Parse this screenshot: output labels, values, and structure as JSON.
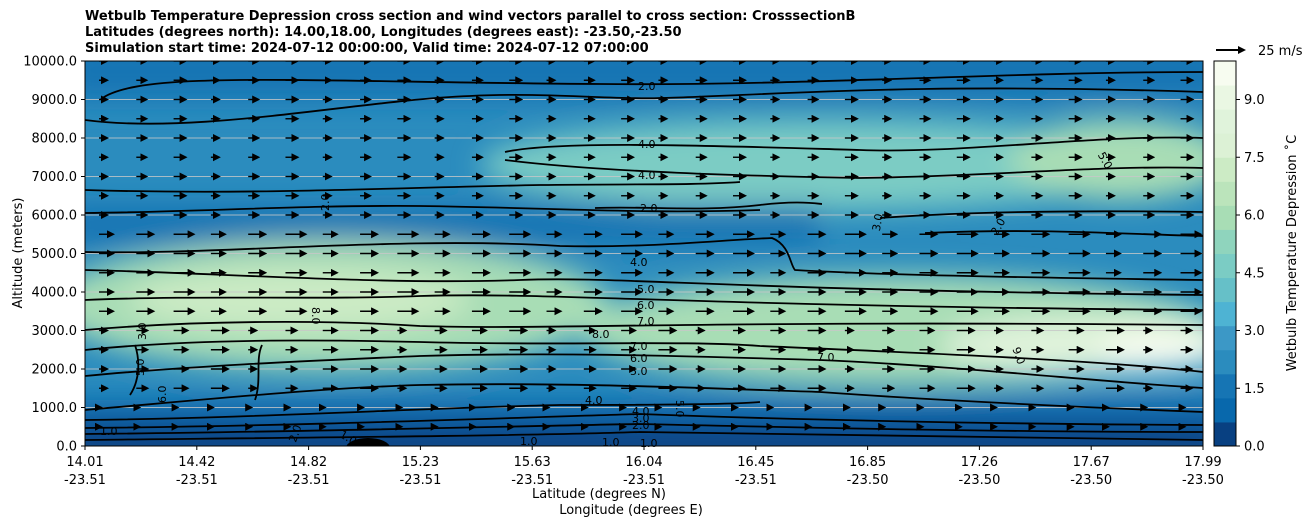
{
  "chart_data": {
    "type": "contour",
    "title_lines": [
      "Wetbulb Temperature Depression cross section and wind vectors parallel to cross section: CrosssectionB",
      "Latitudes (degrees north): 14.00,18.00, Longitudes (degrees east): -23.50,-23.50",
      "Simulation start time: 2024-07-12 00:00:00, Valid time: 2024-07-12 07:00:00"
    ],
    "ylabel": "Altitude (meters)",
    "xlabel_lat": "Latitude (degrees N)",
    "xlabel_lon": "Longitude (degrees E)",
    "ylim": [
      0,
      10000
    ],
    "y_ticks": [
      "0.0",
      "1000.0",
      "2000.0",
      "3000.0",
      "4000.0",
      "5000.0",
      "6000.0",
      "7000.0",
      "8000.0",
      "9000.0",
      "10000.0"
    ],
    "x_ticks": [
      {
        "lat": "14.01",
        "lon": "-23.51"
      },
      {
        "lat": "14.42",
        "lon": "-23.51"
      },
      {
        "lat": "14.82",
        "lon": "-23.51"
      },
      {
        "lat": "15.23",
        "lon": "-23.51"
      },
      {
        "lat": "15.63",
        "lon": "-23.51"
      },
      {
        "lat": "16.04",
        "lon": "-23.51"
      },
      {
        "lat": "16.45",
        "lon": "-23.51"
      },
      {
        "lat": "16.85",
        "lon": "-23.50"
      },
      {
        "lat": "17.26",
        "lon": "-23.50"
      },
      {
        "lat": "17.67",
        "lon": "-23.50"
      },
      {
        "lat": "17.99",
        "lon": "-23.50"
      }
    ],
    "colorbar": {
      "label": "Wetbulb Temperature Depression ˚C",
      "ticks": [
        "0.0",
        "1.5",
        "3.0",
        "4.5",
        "6.0",
        "7.5",
        "9.0"
      ],
      "range": [
        0,
        10
      ],
      "colors_low_to_high": [
        "#084081",
        "#0868ac",
        "#1675b4",
        "#2b8cbe",
        "#3c98c6",
        "#4eb3d3",
        "#66c0c8",
        "#7bccc4",
        "#8fd4bd",
        "#a8ddb5",
        "#bbe4bb",
        "#ccebc5",
        "#dcf1d5",
        "#e0f3db",
        "#eaf7e3",
        "#f7fcf0"
      ]
    },
    "quiver_key": "25 m/s",
    "contour_labels": [
      "2.0",
      "4.0",
      "4.0",
      "2.0",
      "4.0",
      "5.0",
      "6.0",
      "7.0",
      "8.0",
      "7.0",
      "6.0",
      "5.0",
      "7.0",
      "8.0",
      "9.0",
      "2.0",
      "3.0",
      "3.0",
      "4.0",
      "3.0",
      "2.0",
      "1.0",
      "1.0",
      "1.0",
      "1.0",
      "1.0",
      "2.0",
      "5.0",
      "6.0",
      "5.0",
      "8.0",
      "2.0",
      "5.0",
      "4.0",
      "0.1"
    ],
    "description_levels": [
      1,
      2,
      3,
      4,
      5,
      6,
      7,
      8,
      9
    ]
  }
}
